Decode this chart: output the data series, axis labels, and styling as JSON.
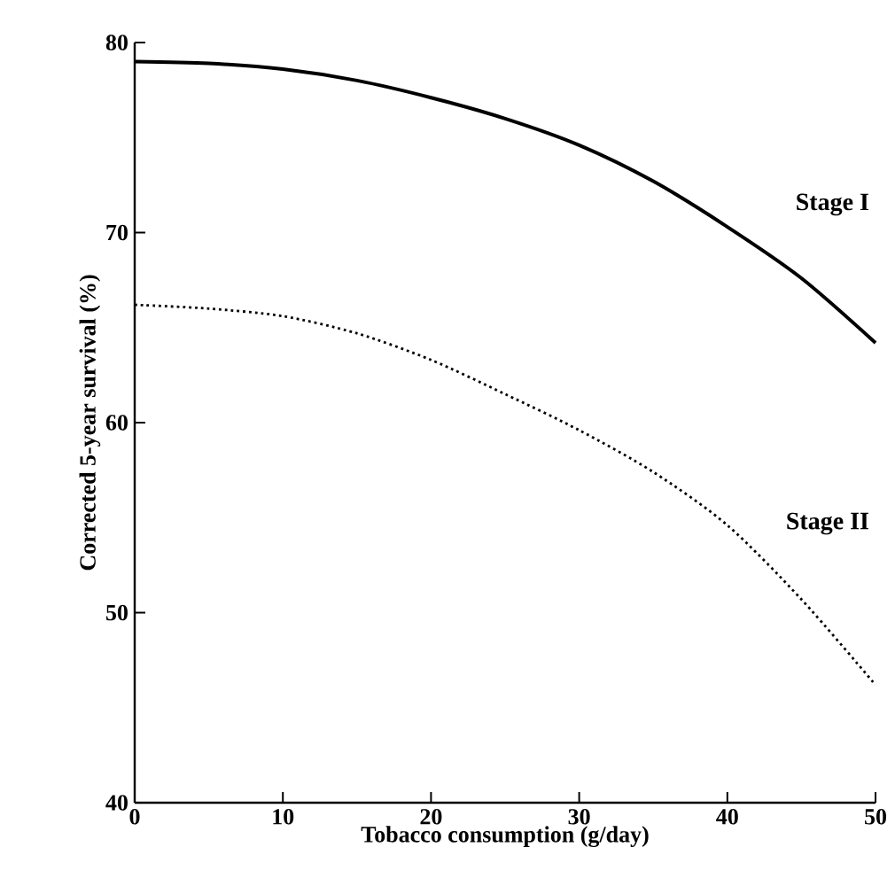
{
  "chart_data": {
    "type": "line",
    "xlabel": "Tobacco consumption (g/day)",
    "ylabel": "Corrected 5-year survival (%)",
    "x": [
      0,
      5,
      10,
      15,
      20,
      25,
      30,
      35,
      40,
      45,
      50
    ],
    "series": [
      {
        "name": "Stage I",
        "color": "#000000",
        "line_style": "solid",
        "values": [
          79.0,
          78.9,
          78.6,
          78.0,
          77.1,
          76.0,
          74.6,
          72.7,
          70.3,
          67.6,
          64.2
        ]
      },
      {
        "name": "Stage II",
        "color": "#000000",
        "line_style": "dotted",
        "values": [
          66.2,
          66.0,
          65.6,
          64.7,
          63.3,
          61.5,
          59.6,
          57.4,
          54.6,
          50.7,
          46.2
        ]
      }
    ],
    "xlim": [
      0,
      50
    ],
    "ylim": [
      40,
      80
    ],
    "xticks": [
      0,
      10,
      20,
      30,
      40,
      50
    ],
    "yticks": [
      40,
      50,
      60,
      70,
      80
    ],
    "grid": false,
    "legend": false,
    "marker": "none"
  }
}
